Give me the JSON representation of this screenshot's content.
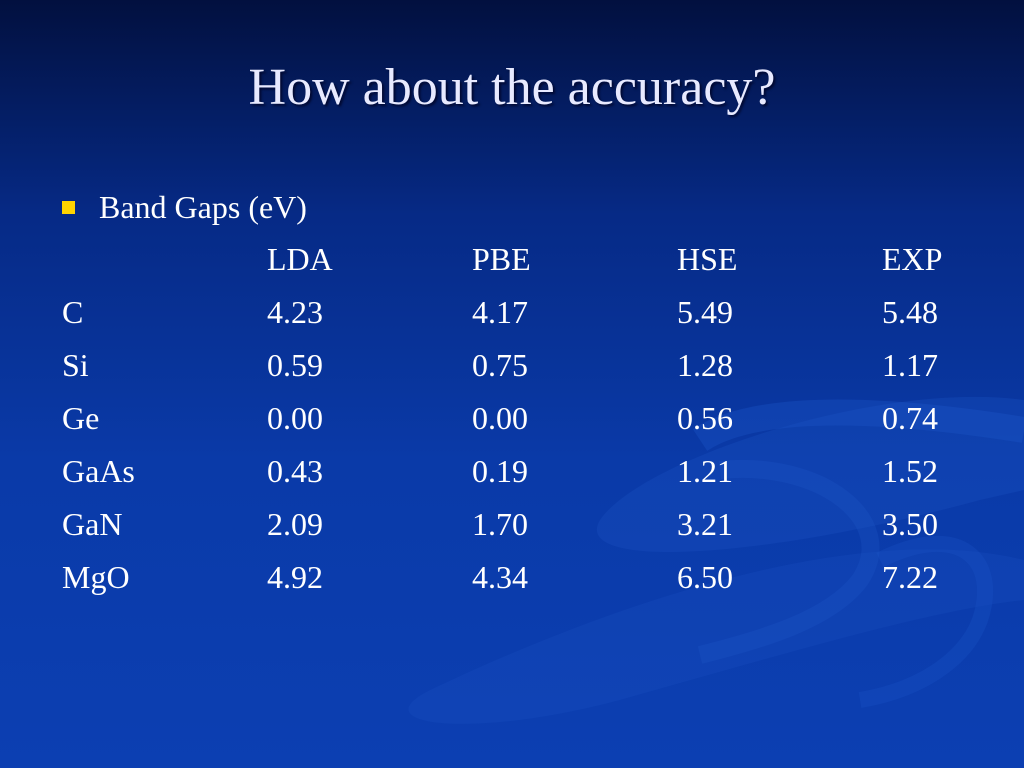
{
  "slide": {
    "title": "How about the accuracy?",
    "bullet": "Band Gaps (eV)",
    "accent_color": "#ffd400",
    "background_color": "#0a3aa8"
  },
  "table": {
    "headers": [
      "",
      "LDA",
      "PBE",
      "HSE",
      "EXP"
    ],
    "rows": [
      [
        "C",
        "4.23",
        "4.17",
        "5.49",
        "5.48"
      ],
      [
        "Si",
        "0.59",
        "0.75",
        "1.28",
        "1.17"
      ],
      [
        "Ge",
        "0.00",
        "0.00",
        "0.56",
        "0.74"
      ],
      [
        "GaAs",
        "0.43",
        "0.19",
        "1.21",
        "1.52"
      ],
      [
        "GaN",
        "2.09",
        "1.70",
        "3.21",
        "3.50"
      ],
      [
        "MgO",
        "4.92",
        "4.34",
        "6.50",
        "7.22"
      ]
    ]
  }
}
